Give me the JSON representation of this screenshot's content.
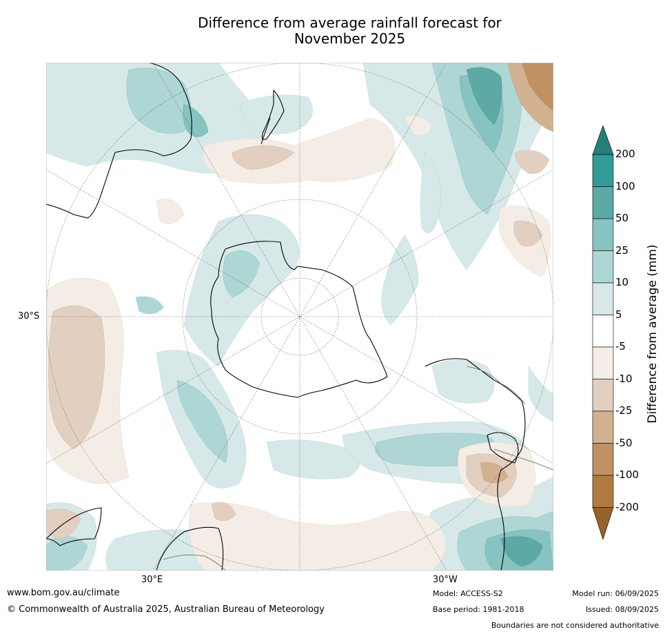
{
  "title_line1": "Difference from average rainfall forecast for",
  "title_line2": "November 2025",
  "lat_label": "30°S",
  "lon_label_east": "30°E",
  "lon_label_west": "30°W",
  "colorbar": {
    "label": "Difference from average (mm)",
    "ticks": [
      "200",
      "100",
      "50",
      "25",
      "10",
      "5",
      "-5",
      "-10",
      "-25",
      "-50",
      "-100",
      "-200"
    ],
    "colors": [
      "#257f7b",
      "#329b98",
      "#5ca9a6",
      "#86c3c1",
      "#aed6d5",
      "#d6e9e8",
      "#ffffff",
      "#f3ede6",
      "#e3cfbf",
      "#d2b191",
      "#c09162",
      "#b07a41",
      "#94622b"
    ]
  },
  "footer": {
    "website": "www.bom.gov.au/climate",
    "copyright": "© Commonwealth of Australia 2025, Australian Bureau of Meteorology",
    "model": "Model: ACCESS-S2",
    "base_period": "Base period: 1981-2018",
    "model_run": "Model run: 06/09/2025",
    "issued": "Issued: 08/09/2025",
    "disclaimer": "Boundaries are not considered authoritative"
  }
}
